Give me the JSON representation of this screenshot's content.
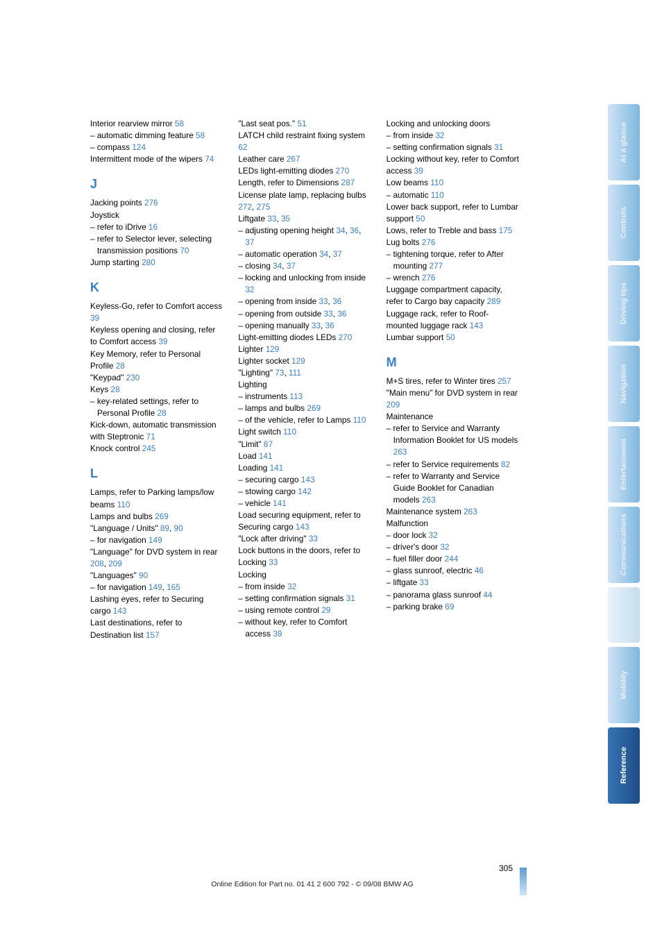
{
  "footer": "Online Edition for Part no. 01 41 2 600 792 - © 09/08 BMW AG",
  "pagenum": "305",
  "tabs": [
    "At a glance",
    "Controls",
    "Driving tips",
    "Navigation",
    "Entertainment",
    "Communications",
    "Mobility",
    "Reference"
  ],
  "c1": [
    [
      "p",
      "Interior rearview mirror <span class='pg'>58</span>"
    ],
    [
      "i",
      "– automatic dimming feature <span class='pg'>58</span>"
    ],
    [
      "i",
      "– compass <span class='pg'>124</span>"
    ],
    [
      "p",
      "Intermittent mode of the wipers <span class='pg'>74</span>"
    ],
    [
      "h",
      "J"
    ],
    [
      "p",
      "Jacking points <span class='pg'>276</span>"
    ],
    [
      "p",
      "Joystick"
    ],
    [
      "i",
      "– refer to iDrive <span class='pg'>16</span>"
    ],
    [
      "i",
      "– refer to Selector lever, selecting transmission positions <span class='pg'>70</span>"
    ],
    [
      "p",
      "Jump starting <span class='pg'>280</span>"
    ],
    [
      "h",
      "K"
    ],
    [
      "p",
      "Keyless-Go, refer to Comfort access <span class='pg'>39</span>"
    ],
    [
      "p",
      "Keyless opening and closing, refer to Comfort access <span class='pg'>39</span>"
    ],
    [
      "p",
      "Key Memory, refer to Personal Profile <span class='pg'>28</span>"
    ],
    [
      "p",
      "\"Keypad\" <span class='pg'>230</span>"
    ],
    [
      "p",
      "Keys <span class='pg'>28</span>"
    ],
    [
      "i",
      "– key-related settings, refer to Personal Profile <span class='pg'>28</span>"
    ],
    [
      "p",
      "Kick-down, automatic transmission with Steptronic <span class='pg'>71</span>"
    ],
    [
      "p",
      "Knock control <span class='pg'>245</span>"
    ],
    [
      "h",
      "L"
    ],
    [
      "p",
      "Lamps, refer to Parking lamps/low beams <span class='pg'>110</span>"
    ],
    [
      "p",
      "Lamps and bulbs <span class='pg'>269</span>"
    ],
    [
      "p",
      "\"Language / Units\" <span class='pg'>89</span>, <span class='pg'>90</span>"
    ],
    [
      "i",
      "– for navigation <span class='pg'>149</span>"
    ],
    [
      "p",
      "\"Language\" for DVD system in rear <span class='pg'>208</span>, <span class='pg'>209</span>"
    ],
    [
      "p",
      "\"Languages\" <span class='pg'>90</span>"
    ],
    [
      "i",
      "– for navigation <span class='pg'>149</span>, <span class='pg'>165</span>"
    ],
    [
      "p",
      "Lashing eyes, refer to Securing cargo <span class='pg'>143</span>"
    ],
    [
      "p",
      "Last destinations, refer to Destination list <span class='pg'>157</span>"
    ]
  ],
  "c2": [
    [
      "p",
      "\"Last seat pos.\" <span class='pg'>51</span>"
    ],
    [
      "p",
      "LATCH child restraint fixing system <span class='pg'>62</span>"
    ],
    [
      "p",
      "Leather care <span class='pg'>267</span>"
    ],
    [
      "p",
      "LEDs light-emitting diodes <span class='pg'>270</span>"
    ],
    [
      "p",
      "Length, refer to Dimensions <span class='pg'>287</span>"
    ],
    [
      "p",
      "License plate lamp, replacing bulbs <span class='pg'>272</span>, <span class='pg'>275</span>"
    ],
    [
      "p",
      "Liftgate <span class='pg'>33</span>, <span class='pg'>35</span>"
    ],
    [
      "i",
      "– adjusting opening height <span class='pg'>34</span>, <span class='pg'>36</span>, <span class='pg'>37</span>"
    ],
    [
      "i",
      "– automatic operation <span class='pg'>34</span>, <span class='pg'>37</span>"
    ],
    [
      "i",
      "– closing <span class='pg'>34</span>, <span class='pg'>37</span>"
    ],
    [
      "i",
      "– locking and unlocking from inside <span class='pg'>32</span>"
    ],
    [
      "i",
      "– opening from inside <span class='pg'>33</span>, <span class='pg'>36</span>"
    ],
    [
      "i",
      "– opening from outside <span class='pg'>33</span>, <span class='pg'>36</span>"
    ],
    [
      "i",
      "– opening manually <span class='pg'>33</span>, <span class='pg'>36</span>"
    ],
    [
      "p",
      "Light-emitting diodes LEDs <span class='pg'>270</span>"
    ],
    [
      "p",
      "Lighter <span class='pg'>129</span>"
    ],
    [
      "p",
      "Lighter socket <span class='pg'>129</span>"
    ],
    [
      "p",
      "\"Lighting\" <span class='pg'>73</span>, <span class='pg'>111</span>"
    ],
    [
      "p",
      "Lighting"
    ],
    [
      "i",
      "– instruments <span class='pg'>113</span>"
    ],
    [
      "i",
      "– lamps and bulbs <span class='pg'>269</span>"
    ],
    [
      "i",
      "– of the vehicle, refer to Lamps <span class='pg'>110</span>"
    ],
    [
      "p",
      "Light switch <span class='pg'>110</span>"
    ],
    [
      "p",
      "\"Limit\" <span class='pg'>87</span>"
    ],
    [
      "p",
      "Load <span class='pg'>141</span>"
    ],
    [
      "p",
      "Loading <span class='pg'>141</span>"
    ],
    [
      "i",
      "– securing cargo <span class='pg'>143</span>"
    ],
    [
      "i",
      "– stowing cargo <span class='pg'>142</span>"
    ],
    [
      "i",
      "– vehicle <span class='pg'>141</span>"
    ],
    [
      "p",
      "Load securing equipment, refer to Securing cargo <span class='pg'>143</span>"
    ],
    [
      "p",
      "\"Lock after driving\" <span class='pg'>33</span>"
    ],
    [
      "p",
      "Lock buttons in the doors, refer to Locking <span class='pg'>33</span>"
    ],
    [
      "p",
      "Locking"
    ],
    [
      "i",
      "– from inside <span class='pg'>32</span>"
    ],
    [
      "i",
      "– setting confirmation signals <span class='pg'>31</span>"
    ],
    [
      "i",
      "– using remote control <span class='pg'>29</span>"
    ],
    [
      "i",
      "– without key, refer to Comfort access <span class='pg'>39</span>"
    ]
  ],
  "c3": [
    [
      "p",
      "Locking and unlocking doors"
    ],
    [
      "i",
      "– from inside <span class='pg'>32</span>"
    ],
    [
      "i",
      "– setting confirmation signals <span class='pg'>31</span>"
    ],
    [
      "p",
      "Locking without key, refer to Comfort access <span class='pg'>39</span>"
    ],
    [
      "p",
      "Low beams <span class='pg'>110</span>"
    ],
    [
      "i",
      "– automatic <span class='pg'>110</span>"
    ],
    [
      "p",
      "Lower back support, refer to Lumbar support <span class='pg'>50</span>"
    ],
    [
      "p",
      "Lows, refer to Treble and bass <span class='pg'>175</span>"
    ],
    [
      "p",
      "Lug bolts <span class='pg'>276</span>"
    ],
    [
      "i",
      "– tightening torque, refer to After mounting <span class='pg'>277</span>"
    ],
    [
      "i",
      "– wrench <span class='pg'>276</span>"
    ],
    [
      "p",
      "Luggage compartment capacity, refer to Cargo bay capacity <span class='pg'>289</span>"
    ],
    [
      "p",
      "Luggage rack, refer to Roof-mounted luggage rack <span class='pg'>143</span>"
    ],
    [
      "p",
      "Lumbar support <span class='pg'>50</span>"
    ],
    [
      "h",
      "M"
    ],
    [
      "p",
      "M+S tires, refer to Winter tires <span class='pg'>257</span>"
    ],
    [
      "p",
      "\"Main menu\" for DVD system in rear <span class='pg'>209</span>"
    ],
    [
      "p",
      "Maintenance"
    ],
    [
      "i",
      "– refer to Service and Warranty Information Booklet for US models <span class='pg'>263</span>"
    ],
    [
      "i",
      "– refer to Service requirements <span class='pg'>82</span>"
    ],
    [
      "i",
      "– refer to Warranty and Service Guide Booklet for Canadian models <span class='pg'>263</span>"
    ],
    [
      "p",
      "Maintenance system <span class='pg'>263</span>"
    ],
    [
      "p",
      "Malfunction"
    ],
    [
      "i",
      "– door lock <span class='pg'>32</span>"
    ],
    [
      "i",
      "– driver's door <span class='pg'>32</span>"
    ],
    [
      "i",
      "– fuel filler door <span class='pg'>244</span>"
    ],
    [
      "i",
      "– glass sunroof, electric <span class='pg'>46</span>"
    ],
    [
      "i",
      "– liftgate <span class='pg'>33</span>"
    ],
    [
      "i",
      "– panorama glass sunroof <span class='pg'>44</span>"
    ],
    [
      "i",
      "– parking brake <span class='pg'>69</span>"
    ]
  ]
}
